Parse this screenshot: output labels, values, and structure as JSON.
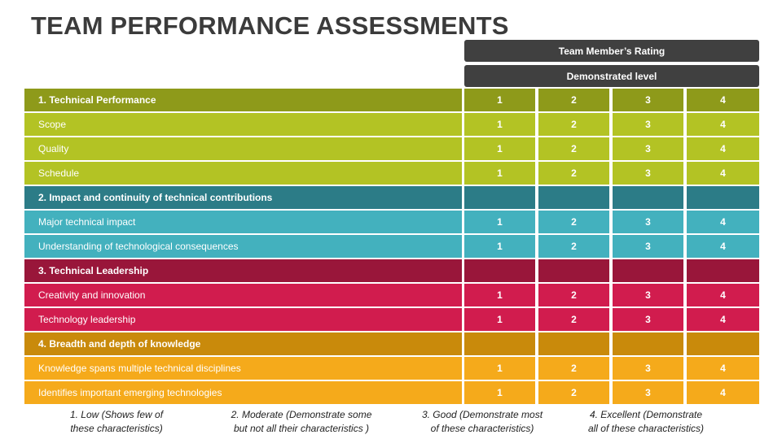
{
  "header": {
    "title": "TEAM PERFORMANCE ASSESSMENTS"
  },
  "table": {
    "column_headers": [
      "Team Member’s Rating",
      "Demonstrated level"
    ],
    "sections": [
      {
        "color_header": "#8e9a1a",
        "color_rows": "#b3c324",
        "title": "1. Technical Performance",
        "title_ratings": [
          1,
          2,
          3,
          4
        ],
        "rows": [
          {
            "label": "Scope",
            "ratings": [
              1,
              2,
              3,
              4
            ]
          },
          {
            "label": "Quality",
            "ratings": [
              1,
              2,
              3,
              4
            ]
          },
          {
            "label": "Schedule",
            "ratings": [
              1,
              2,
              3,
              4
            ]
          }
        ]
      },
      {
        "color_header": "#2c7c87",
        "color_rows": "#43b1be",
        "title": "2. Impact and continuity of technical contributions",
        "rows": [
          {
            "label": "Major technical impact",
            "ratings": [
              1,
              2,
              3,
              4
            ]
          },
          {
            "label": "Understanding of technological consequences",
            "ratings": [
              1,
              2,
              3,
              4
            ]
          }
        ]
      },
      {
        "color_header": "#99163a",
        "color_rows": "#d11c4e",
        "title": "3. Technical Leadership",
        "rows": [
          {
            "label": "Creativity and innovation",
            "ratings": [
              1,
              2,
              3,
              4
            ]
          },
          {
            "label": "Technology leadership",
            "ratings": [
              1,
              2,
              3,
              4
            ]
          }
        ]
      },
      {
        "color_header": "#c98a0b",
        "color_rows": "#f5aa1b",
        "title": "4. Breadth and depth of knowledge",
        "rows": [
          {
            "label": "Knowledge spans multiple technical disciplines",
            "ratings": [
              1,
              2,
              3,
              4
            ]
          },
          {
            "label": "Identifies important emerging technologies",
            "ratings": [
              1,
              2,
              3,
              4
            ]
          }
        ]
      }
    ]
  },
  "footnotes": [
    [
      "1. Low (Shows few of",
      "these characteristics)"
    ],
    [
      "2. Moderate (Demonstrate some",
      "but not all their characteristics )"
    ],
    [
      "3. Good (Demonstrate most",
      "of these characteristics)"
    ],
    [
      "4. Excellent (Demonstrate",
      "all of these characteristics)"
    ]
  ]
}
